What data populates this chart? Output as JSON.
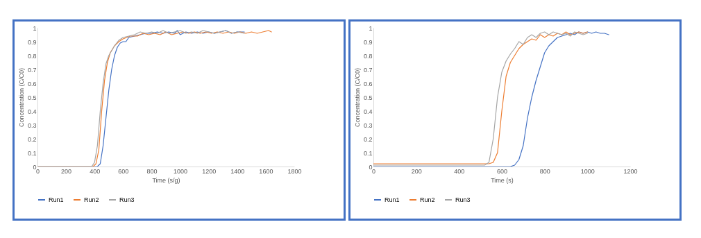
{
  "chart_data": [
    {
      "type": "line",
      "xlabel": "Time (s/g)",
      "ylabel": "Concentration (C/C0)",
      "xlim": [
        0,
        1800
      ],
      "xticks": [
        0,
        200,
        400,
        600,
        800,
        1000,
        1200,
        1400,
        1600,
        1800
      ],
      "ylim": [
        0,
        1
      ],
      "yticks": [
        0,
        0.1,
        0.2,
        0.3,
        0.4,
        0.5,
        0.6,
        0.7,
        0.8,
        0.9,
        1
      ],
      "legend": "bottom",
      "series": [
        {
          "name": "Run1",
          "color": "#4472c4",
          "x": [
            0,
            200,
            400,
            420,
            440,
            460,
            480,
            500,
            520,
            540,
            560,
            580,
            600,
            620,
            640,
            680,
            720,
            760,
            800,
            840,
            880,
            920,
            960,
            980,
            1000,
            1040,
            1080,
            1120,
            1160,
            1200,
            1240,
            1280,
            1320,
            1360,
            1400,
            1450
          ],
          "values": [
            0,
            0,
            0,
            0,
            0.02,
            0.15,
            0.35,
            0.55,
            0.7,
            0.8,
            0.86,
            0.89,
            0.9,
            0.9,
            0.93,
            0.94,
            0.95,
            0.96,
            0.96,
            0.97,
            0.96,
            0.97,
            0.96,
            0.98,
            0.95,
            0.97,
            0.96,
            0.97,
            0.96,
            0.97,
            0.96,
            0.97,
            0.98,
            0.96,
            0.97,
            0.97
          ]
        },
        {
          "name": "Run2",
          "color": "#ed7d31",
          "x": [
            0,
            200,
            390,
            410,
            430,
            450,
            470,
            490,
            510,
            540,
            570,
            600,
            650,
            700,
            740,
            780,
            820,
            860,
            900,
            940,
            980,
            1020,
            1060,
            1100,
            1140,
            1180,
            1220,
            1260,
            1300,
            1340,
            1380,
            1420,
            1460,
            1500,
            1540,
            1580,
            1620,
            1640
          ],
          "values": [
            0,
            0,
            0,
            0.02,
            0.12,
            0.4,
            0.62,
            0.75,
            0.82,
            0.87,
            0.9,
            0.92,
            0.94,
            0.94,
            0.96,
            0.95,
            0.96,
            0.95,
            0.97,
            0.95,
            0.96,
            0.97,
            0.96,
            0.97,
            0.96,
            0.97,
            0.96,
            0.97,
            0.96,
            0.97,
            0.96,
            0.97,
            0.96,
            0.97,
            0.96,
            0.97,
            0.98,
            0.97
          ]
        },
        {
          "name": "Run3",
          "color": "#a5a5a5",
          "x": [
            0,
            200,
            380,
            400,
            420,
            440,
            460,
            480,
            500,
            540,
            570,
            600,
            640,
            680,
            720,
            760,
            800,
            840,
            880,
            920,
            960,
            1000,
            1040,
            1080,
            1120,
            1160,
            1200,
            1240,
            1280,
            1320,
            1360,
            1400,
            1450
          ],
          "values": [
            0,
            0,
            0,
            0.03,
            0.15,
            0.4,
            0.6,
            0.74,
            0.8,
            0.87,
            0.91,
            0.93,
            0.94,
            0.95,
            0.97,
            0.96,
            0.97,
            0.96,
            0.98,
            0.96,
            0.97,
            0.98,
            0.96,
            0.97,
            0.96,
            0.98,
            0.97,
            0.96,
            0.97,
            0.98,
            0.96,
            0.97,
            0.96
          ]
        }
      ]
    },
    {
      "type": "line",
      "xlabel": "Time (s)",
      "ylabel": "Concentration (C/C0)",
      "xlim": [
        0,
        1200
      ],
      "xticks": [
        0,
        200,
        400,
        600,
        800,
        1000,
        1200
      ],
      "ylim": [
        0,
        1
      ],
      "yticks": [
        0,
        0.1,
        0.2,
        0.3,
        0.4,
        0.5,
        0.6,
        0.7,
        0.8,
        0.9,
        1
      ],
      "legend": "bottom",
      "series": [
        {
          "name": "Run1",
          "color": "#4472c4",
          "x": [
            0,
            100,
            200,
            300,
            400,
            500,
            600,
            640,
            660,
            680,
            700,
            720,
            740,
            760,
            780,
            800,
            820,
            840,
            860,
            880,
            900,
            920,
            940,
            960,
            980,
            1000,
            1020,
            1040,
            1060,
            1080,
            1100
          ],
          "values": [
            0,
            0,
            0,
            0,
            0,
            0,
            0,
            0,
            0.01,
            0.05,
            0.15,
            0.35,
            0.5,
            0.62,
            0.72,
            0.82,
            0.87,
            0.9,
            0.93,
            0.94,
            0.95,
            0.96,
            0.95,
            0.97,
            0.96,
            0.97,
            0.96,
            0.97,
            0.96,
            0.96,
            0.95
          ]
        },
        {
          "name": "Run2",
          "color": "#ed7d31",
          "x": [
            0,
            100,
            200,
            300,
            400,
            500,
            540,
            560,
            580,
            600,
            620,
            640,
            660,
            680,
            700,
            720,
            740,
            760,
            780,
            800,
            820,
            840,
            860,
            880,
            900,
            920,
            940,
            960,
            980,
            1000
          ],
          "values": [
            0.02,
            0.02,
            0.02,
            0.02,
            0.02,
            0.02,
            0.02,
            0.03,
            0.1,
            0.4,
            0.65,
            0.75,
            0.8,
            0.85,
            0.88,
            0.9,
            0.92,
            0.91,
            0.95,
            0.93,
            0.95,
            0.94,
            0.96,
            0.95,
            0.97,
            0.95,
            0.96,
            0.97,
            0.96,
            0.97
          ]
        },
        {
          "name": "Run3",
          "color": "#a5a5a5",
          "x": [
            0,
            100,
            200,
            300,
            400,
            500,
            520,
            540,
            560,
            580,
            600,
            620,
            640,
            660,
            680,
            700,
            720,
            740,
            760,
            780,
            800,
            820,
            840,
            860,
            880,
            900,
            920,
            940,
            960,
            980,
            1000
          ],
          "values": [
            0.01,
            0.01,
            0.01,
            0.01,
            0.01,
            0.01,
            0.01,
            0.03,
            0.2,
            0.5,
            0.68,
            0.76,
            0.81,
            0.85,
            0.9,
            0.88,
            0.93,
            0.95,
            0.93,
            0.96,
            0.97,
            0.95,
            0.97,
            0.96,
            0.95,
            0.96,
            0.94,
            0.97,
            0.96,
            0.95,
            0.96
          ]
        }
      ]
    }
  ]
}
